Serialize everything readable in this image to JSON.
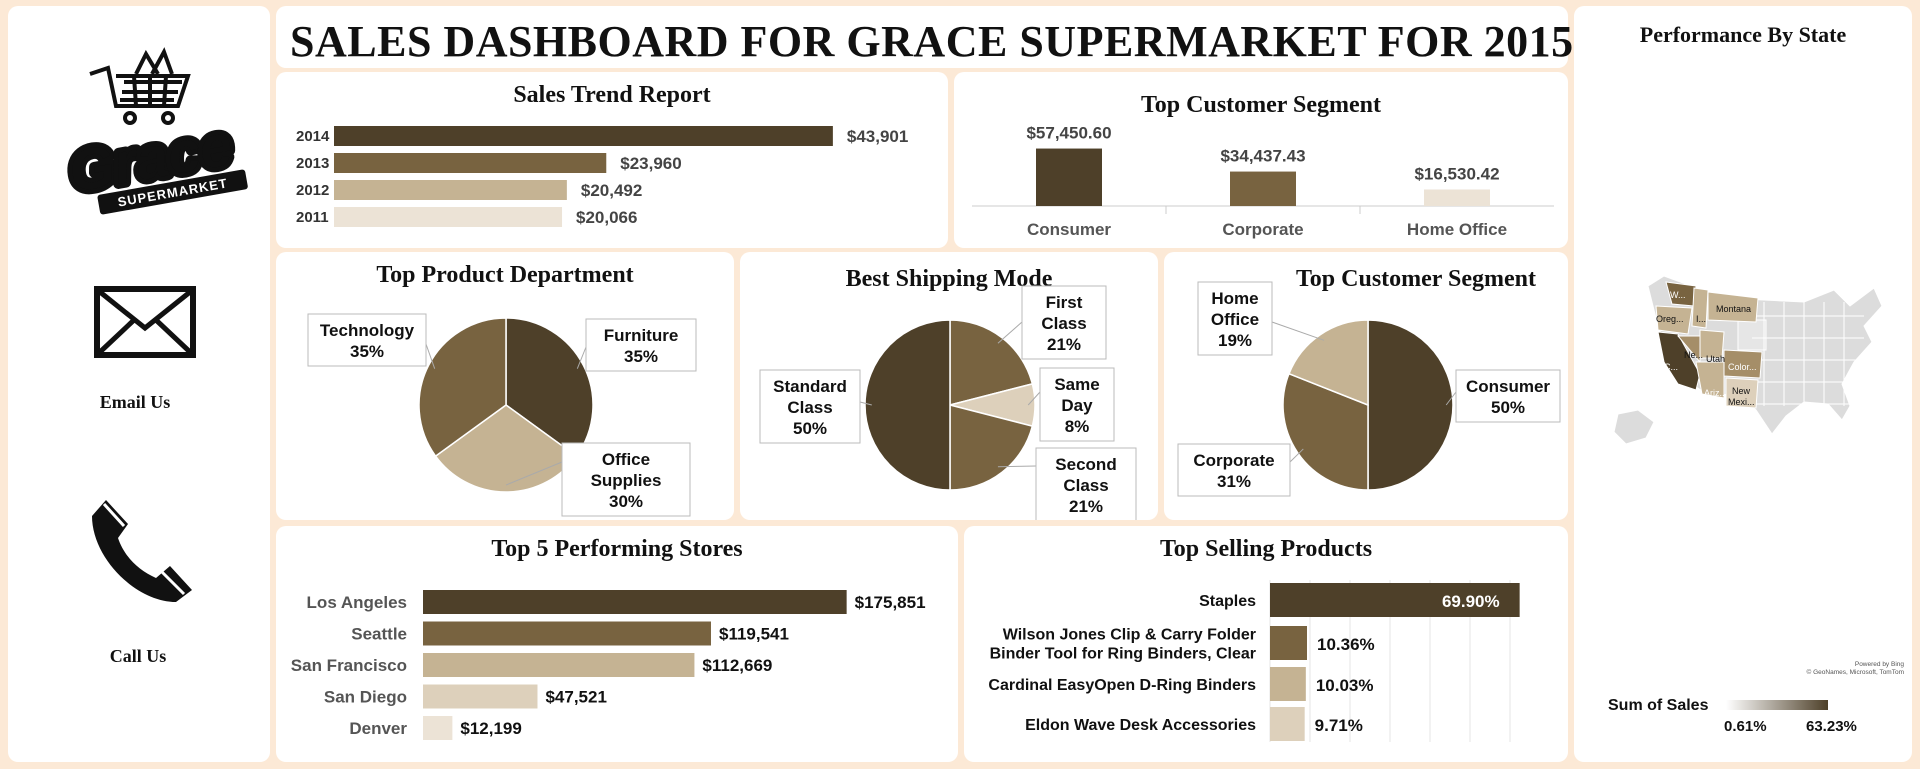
{
  "dashboard": {
    "title": "SALES DASHBOARD FOR GRACE SUPERMARKET FOR 2015"
  },
  "sidebar": {
    "logo": {
      "word": "Grace",
      "banner": "SUPERMARKET"
    },
    "email_label": "Email Us",
    "call_label": "Call Us"
  },
  "colors": {
    "dark": "#4e4029",
    "mid": "#786340",
    "light": "#c5b393",
    "pale": "#ddd0bb",
    "palest": "#ece3d6",
    "background": "#fce9d6"
  },
  "chart_data": [
    {
      "id": "sales_trend",
      "type": "bar",
      "orientation": "horizontal",
      "title": "Sales Trend Report",
      "categories": [
        "2014",
        "2013",
        "2012",
        "2011"
      ],
      "values": [
        43901,
        23960,
        20492,
        20066
      ],
      "labels": [
        "$43,901",
        "$23,960",
        "$20,492",
        "$20,066"
      ],
      "colors": [
        "#4e4029",
        "#786340",
        "#c5b393",
        "#ece3d6"
      ]
    },
    {
      "id": "segment_bars",
      "type": "bar",
      "title": "Top Customer Segment",
      "categories": [
        "Consumer",
        "Corporate",
        "Home Office"
      ],
      "values": [
        57450.6,
        34437.43,
        16530.42
      ],
      "labels": [
        "$57,450.60",
        "$34,437.43",
        "$16,530.42"
      ],
      "colors": [
        "#4e4029",
        "#786340",
        "#ece3d6"
      ]
    },
    {
      "id": "product_department",
      "type": "pie",
      "title": "Top Product Department",
      "slices": [
        {
          "label": "Furniture",
          "value": 35,
          "text": "35%",
          "color": "#4e4029"
        },
        {
          "label": "Office Supplies",
          "value": 30,
          "text": "30%",
          "color": "#c5b393"
        },
        {
          "label": "Technology",
          "value": 35,
          "text": "35%",
          "color": "#786340"
        }
      ]
    },
    {
      "id": "shipping_mode",
      "type": "pie",
      "title": "Best Shipping Mode",
      "slices": [
        {
          "label": "First Class",
          "value": 21,
          "text": "21%",
          "color": "#786340"
        },
        {
          "label": "Same Day",
          "value": 8,
          "text": "8%",
          "color": "#ddd0bb"
        },
        {
          "label": "Second Class",
          "value": 21,
          "text": "21%",
          "color": "#786340"
        },
        {
          "label": "Standard Class",
          "value": 50,
          "text": "50%",
          "color": "#4e4029"
        }
      ]
    },
    {
      "id": "segment_pie",
      "type": "pie",
      "title": "Top Customer Segment",
      "slices": [
        {
          "label": "Consumer",
          "value": 50,
          "text": "50%",
          "color": "#4e4029"
        },
        {
          "label": "Corporate",
          "value": 31,
          "text": "31%",
          "color": "#786340"
        },
        {
          "label": "Home Office",
          "value": 19,
          "text": "19%",
          "color": "#c5b393"
        }
      ]
    },
    {
      "id": "top_stores",
      "type": "bar",
      "orientation": "horizontal",
      "title": "Top 5 Performing Stores",
      "categories": [
        "Los Angeles",
        "Seattle",
        "San Francisco",
        "San Diego",
        "Denver"
      ],
      "values": [
        175851,
        119541,
        112669,
        47521,
        12199
      ],
      "labels": [
        "$175,851",
        "$119,541",
        "$112,669",
        "$47,521",
        "$12,199"
      ],
      "colors": [
        "#4e4029",
        "#786340",
        "#c5b393",
        "#ddd0bb",
        "#ece3d6"
      ]
    },
    {
      "id": "top_products",
      "type": "bar",
      "orientation": "horizontal",
      "title": "Top Selling Products",
      "categories": [
        "Staples",
        "Wilson Jones Clip & Carry Folder Binder Tool for Ring Binders, Clear",
        "Cardinal EasyOpen D-Ring Binders",
        "Eldon Wave Desk Accessories"
      ],
      "category_lines": [
        [
          "Staples"
        ],
        [
          "Wilson Jones Clip & Carry Folder",
          "Binder Tool for Ring Binders, Clear"
        ],
        [
          "Cardinal EasyOpen D-Ring Binders"
        ],
        [
          "Eldon Wave Desk Accessories"
        ]
      ],
      "values": [
        69.9,
        10.36,
        10.03,
        9.71
      ],
      "labels": [
        "69.90%",
        "10.36%",
        "10.03%",
        "9.71%"
      ],
      "colors": [
        "#4e4029",
        "#786340",
        "#c5b393",
        "#ddd0bb"
      ]
    },
    {
      "id": "state_map",
      "type": "map",
      "title": "Performance By State",
      "states": [
        "W...",
        "Oreg...",
        "I...",
        "Montana",
        "C...",
        "Ne...",
        "Utah",
        "Color...",
        "Ariz...",
        "New Mexi..."
      ],
      "legend_title": "Sum of Sales",
      "legend_min": "0.61%",
      "legend_max": "63.23%",
      "attribution": [
        "Powered by Bing",
        "© GeoNames, Microsoft, TomTom"
      ]
    }
  ]
}
